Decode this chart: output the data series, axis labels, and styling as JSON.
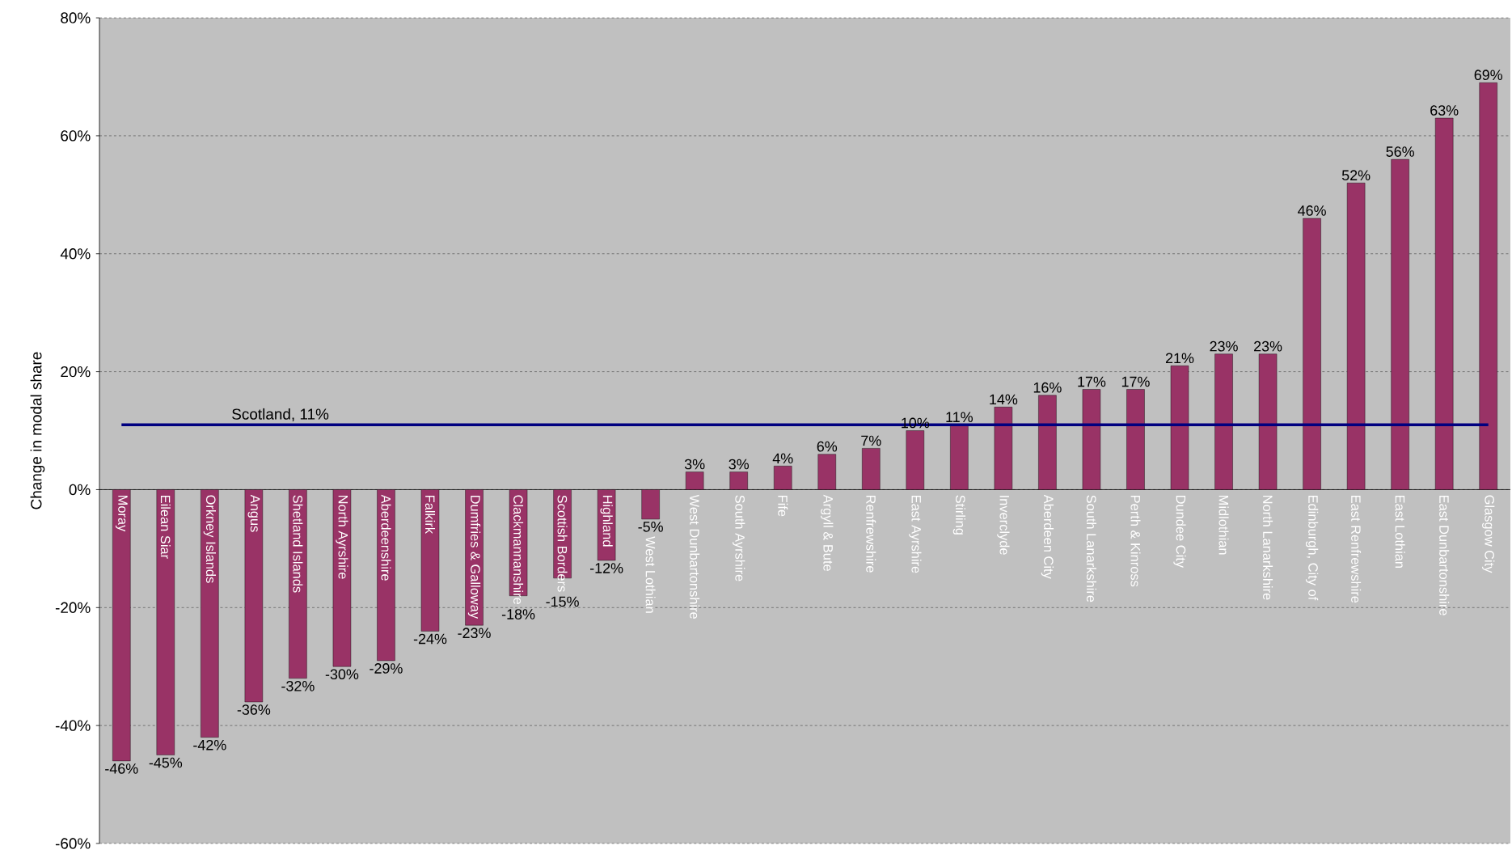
{
  "chart_data": {
    "type": "bar",
    "ylabel": "Change in modal share",
    "categories": [
      "Moray",
      "Eilean Siar",
      "Orkney Islands",
      "Angus",
      "Shetland Islands",
      "North Ayrshire",
      "Aberdeenshire",
      "Falkirk",
      "Dumfries & Galloway",
      "Clackmannanshire",
      "Scottish Borders",
      "Highland",
      "West Lothian",
      "West Dunbartonshire",
      "South Ayrshire",
      "Fife",
      "Argyll & Bute",
      "Renfrewshire",
      "East Ayrshire",
      "Stirling",
      "Inverclyde",
      "Aberdeen City",
      "South Lanarkshire",
      "Perth & Kinross",
      "Dundee City",
      "Midlothian",
      "North Lanarkshire",
      "Edinburgh, City of",
      "East Renfrewshire",
      "East Lothian",
      "East Dunbartonshire",
      "Glasgow City"
    ],
    "values": [
      -46,
      -45,
      -42,
      -36,
      -32,
      -30,
      -29,
      -24,
      -23,
      -18,
      -15,
      -12,
      -5,
      3,
      3,
      4,
      6,
      7,
      10,
      11,
      14,
      16,
      17,
      17,
      21,
      23,
      23,
      46,
      52,
      56,
      63,
      69
    ],
    "value_labels": [
      "-46%",
      "-45%",
      "-42%",
      "-36%",
      "-32%",
      "-30%",
      "-29%",
      "-24%",
      "-23%",
      "-18%",
      "-15%",
      "-12%",
      "-5%",
      "3%",
      "3%",
      "4%",
      "6%",
      "7%",
      "10%",
      "11%",
      "14%",
      "16%",
      "17%",
      "17%",
      "21%",
      "23%",
      "23%",
      "46%",
      "52%",
      "56%",
      "63%",
      "69%"
    ],
    "color": "#993366",
    "ylim": [
      -60,
      80
    ],
    "yticks": [
      {
        "value": -60,
        "label": "-60%"
      },
      {
        "value": -40,
        "label": "-40%"
      },
      {
        "value": -20,
        "label": "-20%"
      },
      {
        "value": 0,
        "label": "0%"
      },
      {
        "value": 20,
        "label": "20%"
      },
      {
        "value": 40,
        "label": "40%"
      },
      {
        "value": 60,
        "label": "60%"
      },
      {
        "value": 80,
        "label": "80%"
      }
    ],
    "grid": "y",
    "ref_lines": [
      {
        "axis": "y",
        "value": 11,
        "label": "Scotland, 11%",
        "color": "#000080"
      }
    ]
  }
}
